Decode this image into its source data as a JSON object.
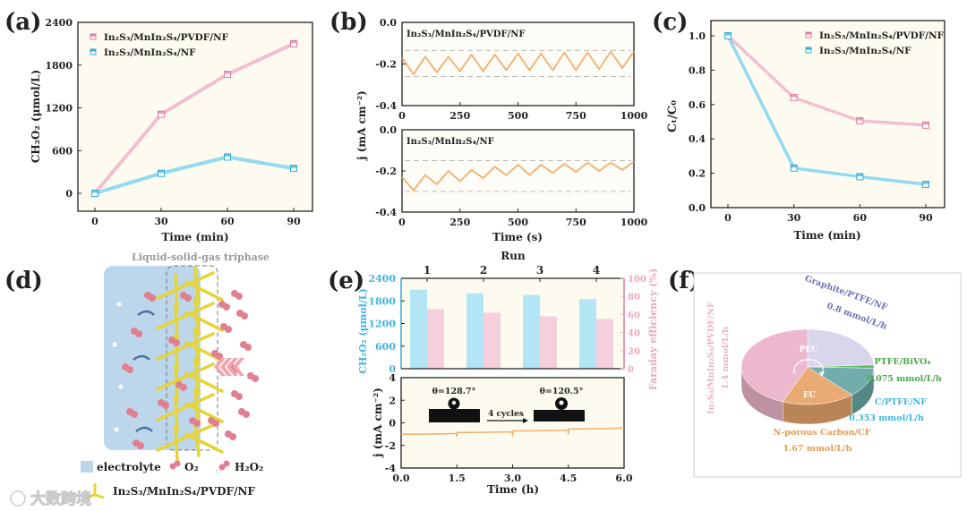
{
  "panels": [
    "(a)",
    "(b)",
    "(c)",
    "(d)",
    "(e)",
    "(f)"
  ],
  "colors": {
    "pink": "#f0b8cc",
    "pink_dark": "#e07aa0",
    "blue": "#86d6ee",
    "blue_dark": "#34acd6",
    "orange": "#f0a660",
    "plot_bg": "#fdfbef"
  },
  "chart_data": [
    {
      "id": "a",
      "type": "line",
      "title": "",
      "xlabel": "Time (min)",
      "ylabel": "CH₂O₂ (μmol/L)",
      "xlim": [
        0,
        90
      ],
      "ylim": [
        0,
        2400
      ],
      "xticks": [
        "0",
        "30",
        "60",
        "90"
      ],
      "yticks": [
        "0",
        "600",
        "1200",
        "1800",
        "2400"
      ],
      "legend_position": "top-left",
      "x": [
        0,
        30,
        60,
        90
      ],
      "series": [
        {
          "name": "In₂S₃/MnIn₂S₄/PVDF/NF",
          "color": "#f0b8cc",
          "values": [
            0,
            1110,
            1670,
            2100
          ]
        },
        {
          "name": "In₂S₃/MnIn₂S₄/NF",
          "color": "#86d6ee",
          "values": [
            0,
            280,
            510,
            350
          ]
        }
      ]
    },
    {
      "id": "b-top",
      "type": "line",
      "label": "In₂S₃/MnIn₂S₄/PVDF/NF",
      "ylabel": "j (mA cm⁻²)",
      "xlim": [
        0,
        1000
      ],
      "ylim": [
        -0.4,
        0
      ],
      "xticks": [
        "0",
        "250",
        "500",
        "750",
        "1000"
      ],
      "yticks": [
        "0.0",
        "-0.2",
        "-0.4"
      ],
      "reference_lines": [
        -0.135,
        -0.26
      ],
      "x": [
        0,
        50,
        100,
        150,
        200,
        250,
        300,
        350,
        400,
        450,
        500,
        550,
        600,
        650,
        700,
        750,
        800,
        850,
        900,
        950,
        1000
      ],
      "series": [
        {
          "name": "In₂S₃/MnIn₂S₄/PVDF/NF",
          "color": "#f0a660",
          "values": [
            -0.17,
            -0.25,
            -0.165,
            -0.24,
            -0.165,
            -0.235,
            -0.155,
            -0.235,
            -0.155,
            -0.23,
            -0.15,
            -0.23,
            -0.15,
            -0.23,
            -0.145,
            -0.23,
            -0.145,
            -0.225,
            -0.14,
            -0.22,
            -0.14
          ]
        }
      ]
    },
    {
      "id": "b-bottom",
      "type": "line",
      "label": "In₂S₃/MnIn₂S₄/NF",
      "xlabel": "Time (s)",
      "xlim": [
        0,
        1000
      ],
      "ylim": [
        -0.4,
        0
      ],
      "xticks": [
        "0",
        "250",
        "500",
        "750",
        "1000"
      ],
      "yticks": [
        "0.0",
        "-0.2",
        "-0.4"
      ],
      "reference_lines": [
        -0.15,
        -0.3
      ],
      "x": [
        0,
        50,
        100,
        150,
        200,
        250,
        300,
        350,
        400,
        450,
        500,
        550,
        600,
        650,
        700,
        750,
        800,
        850,
        900,
        950,
        1000
      ],
      "series": [
        {
          "name": "In₂S₃/MnIn₂S₄/NF",
          "color": "#f0a660",
          "values": [
            -0.23,
            -0.295,
            -0.22,
            -0.265,
            -0.2,
            -0.25,
            -0.195,
            -0.235,
            -0.18,
            -0.22,
            -0.17,
            -0.22,
            -0.17,
            -0.21,
            -0.165,
            -0.205,
            -0.16,
            -0.2,
            -0.16,
            -0.195,
            -0.155
          ]
        }
      ]
    },
    {
      "id": "c",
      "type": "line",
      "xlabel": "Time (min)",
      "ylabel": "Cₜ/C₀",
      "xlim": [
        0,
        90
      ],
      "ylim": [
        0,
        1.0
      ],
      "xticks": [
        "0",
        "30",
        "60",
        "90"
      ],
      "yticks": [
        "0.0",
        "0.2",
        "0.4",
        "0.6",
        "0.8",
        "1.0"
      ],
      "legend_position": "top-right",
      "x": [
        0,
        30,
        60,
        90
      ],
      "series": [
        {
          "name": "In₂S₃/MnIn₂S₄/PVDF/NF",
          "color": "#f0b8cc",
          "values": [
            1.0,
            0.64,
            0.505,
            0.48
          ]
        },
        {
          "name": "In₂S₃/MnIn₂S₄/NF",
          "color": "#86d6ee",
          "values": [
            1.0,
            0.23,
            0.18,
            0.135
          ]
        }
      ]
    },
    {
      "id": "e-top",
      "type": "bar",
      "xlabel": "Run",
      "ylabel": "CH₂O₂ (μmol/L)",
      "ylabel_right": "Faraday efficiency (%)",
      "categories": [
        "1",
        "2",
        "3",
        "4"
      ],
      "ylim": [
        0,
        2400
      ],
      "ylim_right": [
        0,
        100
      ],
      "yticks": [
        "0",
        "600",
        "1200",
        "1800",
        "2400"
      ],
      "yticks_right": [
        "0",
        "20",
        "40",
        "60",
        "80",
        "100"
      ],
      "series": [
        {
          "name": "CH₂O₂",
          "axis": "left",
          "color": "#b3e6f5",
          "values": [
            2100,
            2000,
            1960,
            1850
          ]
        },
        {
          "name": "Faraday efficiency",
          "axis": "right",
          "color": "#f5d0dc",
          "values": [
            66,
            62,
            58,
            55
          ]
        }
      ]
    },
    {
      "id": "e-bottom",
      "type": "line",
      "xlabel": "Time (h)",
      "ylabel": "j (mA cm⁻²)",
      "xlim": [
        0,
        6
      ],
      "ylim": [
        -4,
        4
      ],
      "xticks": [
        "0.0",
        "1.5",
        "3.0",
        "4.5",
        "6.0"
      ],
      "yticks": [
        "-4",
        "-2",
        "0",
        "2",
        "4"
      ],
      "annotations": {
        "before": "θ=128.7°",
        "arrow": "4 cycles",
        "after": "θ=120.5°"
      },
      "x": [
        0,
        0.5,
        1,
        1.49,
        1.5,
        1.51,
        2,
        2.5,
        2.99,
        3.0,
        3.01,
        3.5,
        4,
        4.49,
        4.5,
        4.51,
        5,
        5.5,
        6
      ],
      "series": [
        {
          "name": "j",
          "color": "#f0a660",
          "values": [
            -1.0,
            -1.0,
            -0.98,
            -0.95,
            -1.2,
            -0.85,
            -0.85,
            -0.82,
            -0.8,
            -1.15,
            -0.7,
            -0.7,
            -0.68,
            -0.65,
            -0.95,
            -0.55,
            -0.52,
            -0.5,
            -0.45
          ]
        }
      ]
    },
    {
      "id": "f",
      "type": "pie",
      "groups": [
        "PEC",
        "EC"
      ],
      "slices": [
        {
          "label": "Graphite/PTFE/NF",
          "rate": "0.8 mmol/L/h",
          "value": 0.8,
          "color": "#d7d4ec",
          "text_color": "#6a70b8"
        },
        {
          "label": "PTFE/BiVO₄",
          "rate": "0.075 mmol/L/h",
          "value": 0.075,
          "color": "#5cb85c",
          "text_color": "#4aa84a"
        },
        {
          "label": "C/PTFE/NF",
          "rate": "0.353 mmol/L/h",
          "value": 0.353,
          "color": "#6aa9a9",
          "text_color": "#3bb5e0"
        },
        {
          "label": "N-porous Carbon/CF",
          "rate": "1.67 mmol/L/h",
          "value": 1.67,
          "color": "#e9a66c",
          "text_color": "#e59a55"
        },
        {
          "label": "In₂S₃/MnIn₂S₄/PVDF/NF",
          "rate": "1.4 mmol/L/h",
          "value": 1.4,
          "color": "#edb5cb",
          "text_color": "#eab3c9"
        }
      ]
    }
  ],
  "illustration_d": {
    "title": "Liquid-solid-gas triphase",
    "legend": {
      "electrolyte": "electrolyte",
      "o2": "O₂",
      "h2o2": "H₂O₂",
      "catalyst": "In₂S₃/MnIn₂S₄/PVDF/NF"
    }
  },
  "watermark": "大数跨境"
}
